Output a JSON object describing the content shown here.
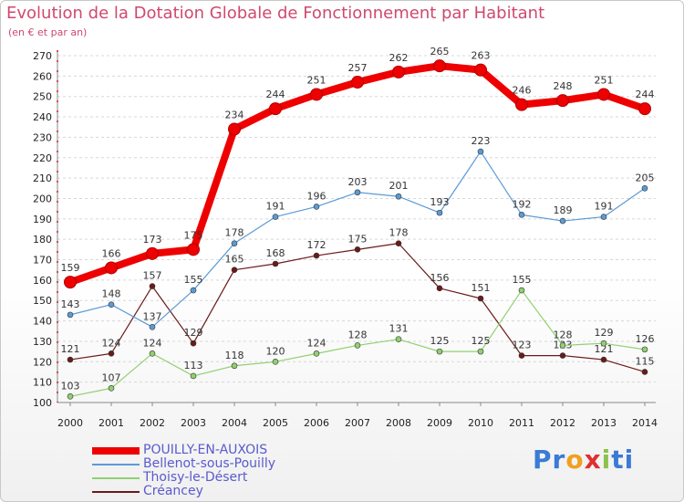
{
  "title": "Evolution de la Dotation Globale de Fonctionnement par Habitant",
  "subtitle": "(en € et par an)",
  "logo_text": "Proxiti",
  "chart_data": {
    "type": "line",
    "title": "Evolution de la Dotation Globale de Fonctionnement par Habitant",
    "subtitle": "(en € et par an)",
    "x": [
      "2000",
      "2001",
      "2002",
      "2003",
      "2004",
      "2005",
      "2006",
      "2007",
      "2008",
      "2009",
      "2010",
      "2011",
      "2012",
      "2013",
      "2014"
    ],
    "ylim": [
      100,
      270
    ],
    "yticks": [
      100,
      110,
      120,
      130,
      140,
      150,
      160,
      170,
      180,
      190,
      200,
      210,
      220,
      230,
      240,
      250,
      260,
      270
    ],
    "grid": "horizontal-dashed",
    "legend_position": "bottom-left",
    "series": [
      {
        "name": "POUILLY-EN-AUXOIS",
        "color": "#ee0000",
        "values": [
          159,
          166,
          173,
          175,
          234,
          244,
          251,
          257,
          262,
          265,
          263,
          246,
          248,
          251,
          244
        ]
      },
      {
        "name": "Bellenot-sous-Pouilly",
        "color": "#5b9bd5",
        "values": [
          143,
          148,
          137,
          155,
          178,
          191,
          196,
          203,
          201,
          193,
          223,
          192,
          189,
          191,
          205
        ]
      },
      {
        "name": "Thoisy-le-Désert",
        "color": "#90d070",
        "values": [
          103,
          107,
          124,
          113,
          118,
          120,
          124,
          128,
          131,
          125,
          125,
          155,
          128,
          129,
          126
        ]
      },
      {
        "name": "Créancey",
        "color": "#6b1a1a",
        "values": [
          121,
          124,
          157,
          129,
          165,
          168,
          172,
          175,
          178,
          156,
          151,
          123,
          123,
          121,
          115
        ]
      }
    ]
  }
}
